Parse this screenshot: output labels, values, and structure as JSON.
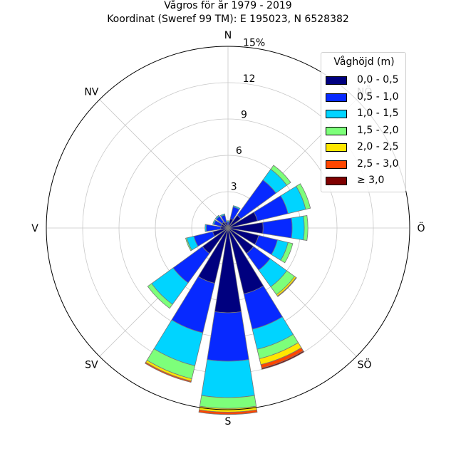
{
  "chart_data": {
    "type": "windrose",
    "title": "Vågros för år 1979 - 2019",
    "subtitle": "Koordinat (Sweref 99 TM): E 195023, N 6528382",
    "directions": [
      "N",
      "NNÖ",
      "NÖ",
      "ÖNÖ",
      "Ö",
      "ÖSÖ",
      "SÖ",
      "SSÖ",
      "S",
      "SSV",
      "SV",
      "VSV",
      "V",
      "VNV",
      "NV",
      "NNV"
    ],
    "direction_labels": [
      "N",
      "NÖ",
      "Ö",
      "SÖ",
      "S",
      "SV",
      "V",
      "NV"
    ],
    "radial_ticks": [
      {
        "value": 3,
        "label": "3"
      },
      {
        "value": 6,
        "label": "6"
      },
      {
        "value": 9,
        "label": "9"
      },
      {
        "value": 12,
        "label": "12"
      },
      {
        "value": 15,
        "label": "15%"
      }
    ],
    "rmax": 15,
    "unit": "%",
    "legend": {
      "title": "Våghöjd (m)",
      "position": "top-right",
      "items": [
        {
          "label": "0,0 - 0,5",
          "color": "#00007f"
        },
        {
          "label": "0,5 - 1,0",
          "color": "#0729ff"
        },
        {
          "label": "1,0 - 1,5",
          "color": "#00d4ff"
        },
        {
          "label": "1,5 - 2,0",
          "color": "#7dff7a"
        },
        {
          "label": "2,0 - 2,5",
          "color": "#ffe600"
        },
        {
          "label": "2,5 - 3,0",
          "color": "#ff4600"
        },
        {
          "label": "≥ 3,0",
          "color": "#7f0000"
        }
      ]
    },
    "series": [
      {
        "name": "0,0 - 0,5",
        "values": [
          0.2,
          0.8,
          1.3,
          2.5,
          2.9,
          2.6,
          2.6,
          5.6,
          7.0,
          4.7,
          2.6,
          1.3,
          0.6,
          0.6,
          0.6,
          0.5
        ]
      },
      {
        "name": "0,5 - 1,0",
        "values": [
          0.3,
          1.0,
          3.6,
          2.6,
          2.4,
          1.6,
          1.7,
          3.0,
          4.0,
          4.2,
          3.0,
          1.6,
          1.2,
          0.6,
          0.6,
          0.6
        ]
      },
      {
        "name": "1,0 - 1,5",
        "values": [
          0.1,
          0.1,
          1.1,
          1.5,
          1.0,
          0.9,
          1.7,
          1.7,
          3.0,
          2.8,
          2.2,
          0.6,
          0.1,
          0.1,
          0.1,
          0.1
        ]
      },
      {
        "name": "1,5 - 2,0",
        "values": [
          0.0,
          0.0,
          0.4,
          0.4,
          0.3,
          0.4,
          0.8,
          0.8,
          0.9,
          1.1,
          0.4,
          0.1,
          0.0,
          0.0,
          0.0,
          0.0
        ]
      },
      {
        "name": "2,0 - 2,5",
        "values": [
          0.0,
          0.0,
          0.0,
          0.0,
          0.0,
          0.0,
          0.15,
          0.5,
          0.3,
          0.2,
          0.0,
          0.0,
          0.0,
          0.0,
          0.0,
          0.0
        ]
      },
      {
        "name": "2,5 - 3,0",
        "values": [
          0.0,
          0.0,
          0.0,
          0.0,
          0.0,
          0.0,
          0.05,
          0.3,
          0.2,
          0.1,
          0.0,
          0.0,
          0.0,
          0.0,
          0.0,
          0.0
        ]
      },
      {
        "name": "≥ 3,0",
        "values": [
          0.0,
          0.0,
          0.0,
          0.0,
          0.0,
          0.0,
          0.0,
          0.1,
          0.0,
          0.0,
          0.0,
          0.0,
          0.0,
          0.0,
          0.0,
          0.0
        ]
      }
    ]
  }
}
